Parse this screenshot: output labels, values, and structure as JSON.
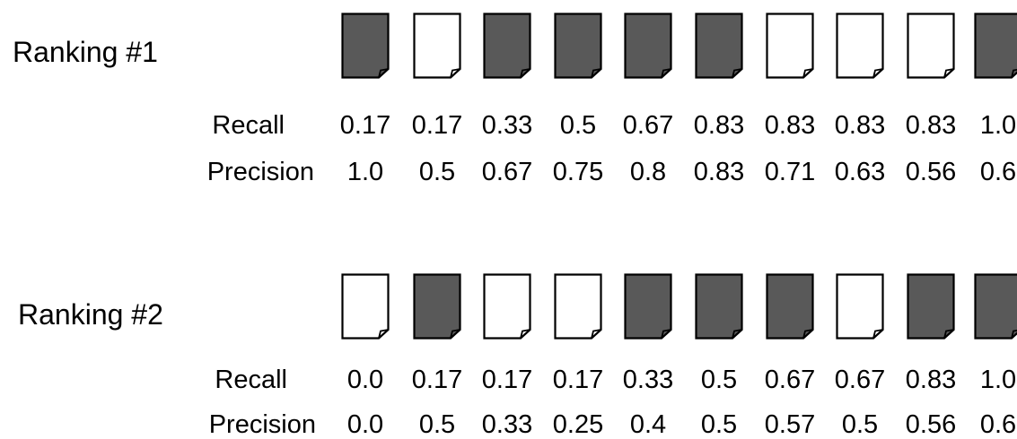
{
  "accent_colors": {
    "relevant_fill": "#595959",
    "nonrelevant_fill": "#ffffff",
    "outline": "#000000"
  },
  "rankings": [
    {
      "title": "Ranking #1",
      "documents": [
        "relevant",
        "nonrelevant",
        "relevant",
        "relevant",
        "relevant",
        "relevant",
        "nonrelevant",
        "nonrelevant",
        "nonrelevant",
        "relevant"
      ],
      "recall_label": "Recall",
      "recall": [
        "0.17",
        "0.17",
        "0.33",
        "0.5",
        "0.67",
        "0.83",
        "0.83",
        "0.83",
        "0.83",
        "1.0"
      ],
      "precision_label": "Precision",
      "precision": [
        "1.0",
        "0.5",
        "0.67",
        "0.75",
        "0.8",
        "0.83",
        "0.71",
        "0.63",
        "0.56",
        "0.6"
      ]
    },
    {
      "title": "Ranking #2",
      "documents": [
        "nonrelevant",
        "relevant",
        "nonrelevant",
        "nonrelevant",
        "relevant",
        "relevant",
        "relevant",
        "nonrelevant",
        "relevant",
        "relevant"
      ],
      "recall_label": "Recall",
      "recall": [
        "0.0",
        "0.17",
        "0.17",
        "0.17",
        "0.33",
        "0.5",
        "0.67",
        "0.67",
        "0.83",
        "1.0"
      ],
      "precision_label": "Precision",
      "precision": [
        "0.0",
        "0.5",
        "0.33",
        "0.25",
        "0.4",
        "0.5",
        "0.57",
        "0.5",
        "0.56",
        "0.6"
      ]
    }
  ]
}
